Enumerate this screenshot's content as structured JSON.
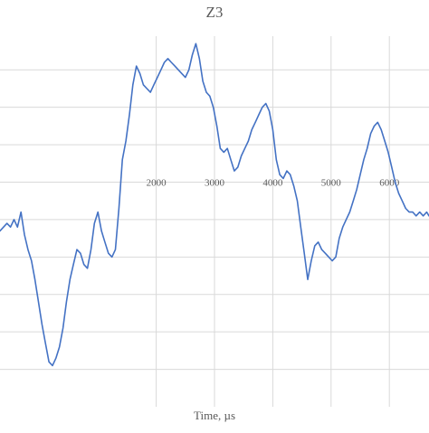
{
  "chart_data": {
    "type": "line",
    "title": "Z3",
    "xlabel": "Time, µs",
    "ylabel": "",
    "xlim": [
      -680,
      6680
    ],
    "ylim": [
      -6,
      3.9
    ],
    "grid": true,
    "xticks": [
      2000,
      3000,
      4000,
      5000,
      6000
    ],
    "xtick_labels": [
      "2000",
      "3000",
      "4000",
      "5000",
      "6000"
    ],
    "ygrid": [
      3,
      2,
      1,
      0,
      -1,
      -2,
      -3,
      -4,
      -5
    ],
    "line_color": "#4472c4",
    "series": [
      {
        "x": [
          -680,
          -620,
          -560,
          -500,
          -440,
          -380,
          -320,
          -260,
          -200,
          -140,
          -80,
          -20,
          40,
          100,
          160,
          220,
          280,
          340,
          400,
          460,
          520,
          580,
          640,
          700,
          760,
          820,
          880,
          940,
          1000,
          1060,
          1120,
          1180,
          1240,
          1300,
          1360,
          1420,
          1480,
          1540,
          1600,
          1660,
          1720,
          1780,
          1840,
          1900,
          1960,
          2020,
          2080,
          2140,
          2200,
          2260,
          2320,
          2380,
          2440,
          2500,
          2560,
          2620,
          2680,
          2740,
          2800,
          2860,
          2920,
          2980,
          3040,
          3100,
          3160,
          3220,
          3280,
          3340,
          3400,
          3460,
          3520,
          3580,
          3640,
          3700,
          3760,
          3820,
          3880,
          3940,
          4000,
          4060,
          4120,
          4180,
          4240,
          4300,
          4360,
          4420,
          4480,
          4540,
          4600,
          4660,
          4720,
          4780,
          4840,
          4900,
          4960,
          5020,
          5080,
          5140,
          5200,
          5260,
          5320,
          5380,
          5440,
          5500,
          5560,
          5620,
          5680,
          5740,
          5800,
          5860,
          5920,
          5980,
          6040,
          6100,
          6160,
          6220,
          6280,
          6340,
          6400,
          6460,
          6520,
          6580,
          6640,
          6680
        ],
        "y": [
          -1.3,
          -1.2,
          -1.1,
          -1.2,
          -1.0,
          -1.2,
          -0.8,
          -1.4,
          -1.8,
          -2.1,
          -2.6,
          -3.2,
          -3.8,
          -4.3,
          -4.8,
          -4.9,
          -4.7,
          -4.4,
          -3.9,
          -3.2,
          -2.6,
          -2.2,
          -1.8,
          -1.9,
          -2.2,
          -2.3,
          -1.8,
          -1.1,
          -0.8,
          -1.3,
          -1.6,
          -1.9,
          -2.0,
          -1.8,
          -0.7,
          0.6,
          1.1,
          1.8,
          2.6,
          3.1,
          2.9,
          2.6,
          2.5,
          2.4,
          2.6,
          2.8,
          3.0,
          3.2,
          3.3,
          3.2,
          3.1,
          3.0,
          2.9,
          2.8,
          3.0,
          3.4,
          3.7,
          3.3,
          2.7,
          2.4,
          2.3,
          2.0,
          1.5,
          0.9,
          0.8,
          0.9,
          0.6,
          0.3,
          0.4,
          0.7,
          0.9,
          1.1,
          1.4,
          1.6,
          1.8,
          2.0,
          2.1,
          1.9,
          1.4,
          0.6,
          0.2,
          0.1,
          0.3,
          0.2,
          -0.1,
          -0.5,
          -1.2,
          -1.9,
          -2.6,
          -2.1,
          -1.7,
          -1.6,
          -1.8,
          -1.9,
          -2.0,
          -2.1,
          -2.0,
          -1.5,
          -1.2,
          -1.0,
          -0.8,
          -0.5,
          -0.2,
          0.2,
          0.6,
          0.9,
          1.3,
          1.5,
          1.6,
          1.4,
          1.1,
          0.8,
          0.4,
          0.0,
          -0.3,
          -0.5,
          -0.7,
          -0.8,
          -0.8,
          -0.9,
          -0.8,
          -0.9,
          -0.8,
          -0.9
        ]
      }
    ]
  }
}
